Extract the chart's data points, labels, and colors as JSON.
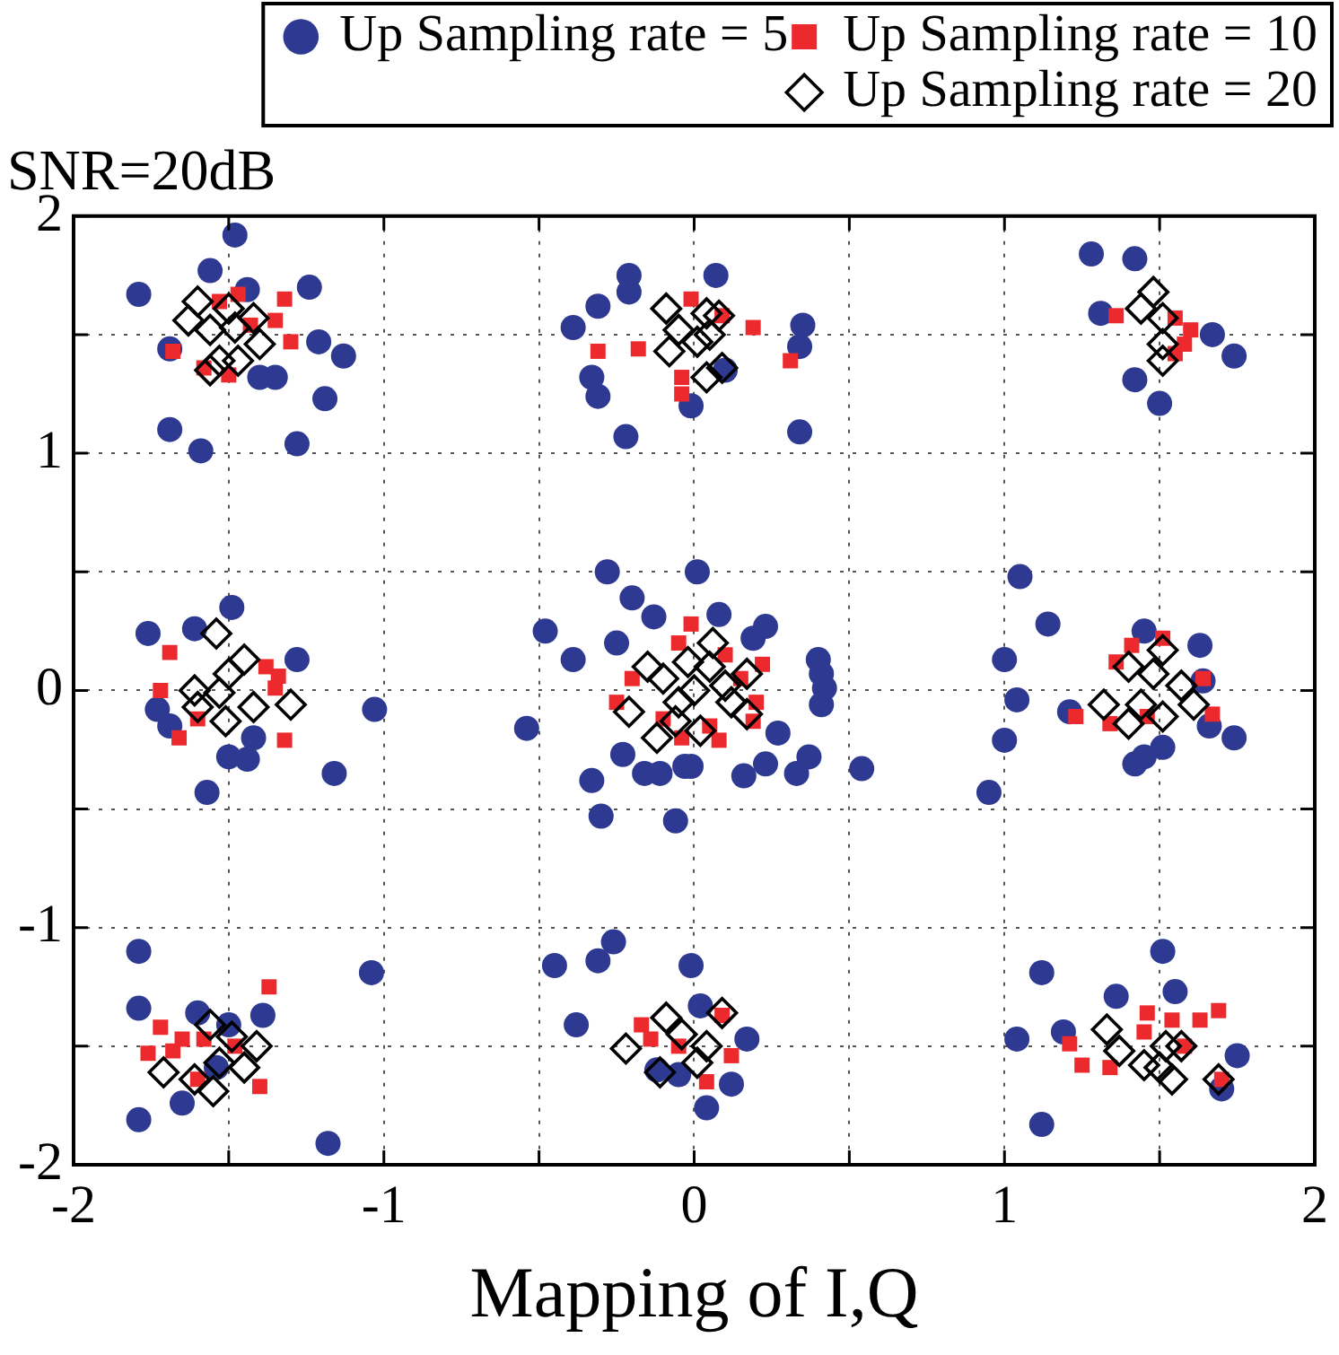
{
  "chart_data": {
    "type": "scatter",
    "title": "SNR=20dB",
    "xlabel": "Mapping of I,Q",
    "xlim": [
      -2,
      2
    ],
    "ylim": [
      -2,
      2
    ],
    "xticks": [
      -2,
      {
        "value": -1.5,
        "label": null
      },
      -1,
      {
        "value": -0.5,
        "label": null
      },
      0,
      {
        "value": 0.5,
        "label": null
      },
      1,
      {
        "value": 1.5,
        "label": null
      },
      2
    ],
    "yticks": [
      -2,
      {
        "value": -1.5,
        "label": null
      },
      -1,
      {
        "value": -0.5,
        "label": null
      },
      0,
      {
        "value": 0.5,
        "label": null
      },
      1,
      {
        "value": 1.5,
        "label": null
      },
      2
    ],
    "grid": true,
    "legend": "top right",
    "series": [
      {
        "name": "Up Sampling rate = 5",
        "color": "#2e3a92",
        "marker": "circle",
        "x": [
          -1.79,
          -1.56,
          -1.48,
          -1.44,
          -1.21,
          -1.13,
          -1.19,
          -1.28,
          -1.69,
          -1.59,
          -1.4,
          -1.35,
          -1.69,
          -1.24,
          -0.21,
          -0.21,
          -0.31,
          -0.39,
          -0.33,
          -0.31,
          -0.22,
          0.07,
          0.35,
          0.34,
          0.34,
          0.1,
          -0.01,
          1.28,
          1.42,
          1.31,
          1.67,
          1.74,
          1.42,
          1.5,
          -1.76,
          -1.61,
          -1.49,
          -1.28,
          -1.73,
          -1.42,
          -1.5,
          -1.44,
          -1.16,
          -1.57,
          -1.03,
          -1.69,
          -0.28,
          -0.2,
          -0.13,
          -0.48,
          -0.39,
          -0.25,
          0.01,
          0.08,
          0.19,
          0.23,
          0.4,
          0.41,
          0.42,
          0.41,
          0.27,
          0.23,
          0.16,
          0.33,
          0.37,
          0.54,
          -0.01,
          -0.54,
          -0.23,
          -0.33,
          -0.3,
          -0.16,
          -0.11,
          -0.06,
          -0.03,
          1.05,
          1.14,
          1.0,
          1.45,
          1.63,
          1.64,
          1.04,
          1.0,
          0.95,
          1.66,
          1.74,
          1.51,
          1.42,
          1.45,
          1.21,
          -1.79,
          -1.79,
          -1.6,
          -1.5,
          -1.39,
          -1.65,
          -1.79,
          -1.18,
          -1.04,
          -1.54,
          -0.45,
          -0.31,
          -0.26,
          -0.38,
          -0.01,
          0.02,
          0.17,
          0.12,
          0.04,
          -0.12,
          -0.05,
          1.51,
          1.12,
          1.36,
          1.55,
          1.04,
          1.19,
          1.75,
          1.7,
          1.12
        ],
        "values": [
          1.67,
          1.77,
          1.92,
          1.69,
          1.47,
          1.41,
          1.23,
          1.04,
          1.1,
          1.01,
          1.32,
          1.32,
          1.44,
          1.7,
          1.75,
          1.68,
          1.62,
          1.53,
          1.32,
          1.24,
          1.07,
          1.75,
          1.54,
          1.45,
          1.09,
          1.35,
          1.2,
          1.84,
          1.82,
          1.59,
          1.5,
          1.41,
          1.31,
          1.21,
          0.24,
          0.26,
          0.35,
          0.13,
          -0.08,
          -0.2,
          -0.28,
          -0.29,
          -0.35,
          -0.43,
          -0.08,
          -0.15,
          0.5,
          0.39,
          0.31,
          0.25,
          0.13,
          0.2,
          0.5,
          0.32,
          0.22,
          0.27,
          0.13,
          0.07,
          0.01,
          -0.06,
          -0.18,
          -0.31,
          -0.36,
          -0.35,
          -0.28,
          -0.33,
          -0.32,
          -0.16,
          -0.27,
          -0.38,
          -0.53,
          -0.35,
          -0.35,
          -0.55,
          -0.32,
          0.48,
          0.28,
          0.13,
          0.25,
          0.19,
          0.04,
          -0.04,
          -0.21,
          -0.43,
          -0.15,
          -0.2,
          -0.24,
          -0.31,
          -0.28,
          -0.09,
          -1.1,
          -1.34,
          -1.36,
          -1.41,
          -1.37,
          -1.74,
          -1.81,
          -1.91,
          -1.19,
          -1.59,
          -1.16,
          -1.14,
          -1.06,
          -1.41,
          -1.16,
          -1.33,
          -1.47,
          -1.66,
          -1.76,
          -1.6,
          -1.62,
          -1.1,
          -1.19,
          -1.29,
          -1.27,
          -1.47,
          -1.44,
          -1.54,
          -1.68,
          -1.83
        ]
      },
      {
        "name": "Up Sampling rate = 10",
        "color": "#ec2a2d",
        "marker": "square",
        "x": [
          -1.32,
          -1.35,
          -1.3,
          -1.68,
          -1.58,
          -1.5,
          -1.47,
          -1.53,
          -1.43,
          -0.31,
          -0.18,
          -0.04,
          -0.04,
          0.19,
          0.31,
          -0.01,
          0.09,
          1.36,
          1.55,
          1.6,
          1.58,
          1.55,
          -1.69,
          -1.38,
          -1.34,
          -1.72,
          -1.66,
          -1.6,
          -1.32,
          -1.35,
          -0.01,
          0.22,
          0.08,
          0.19,
          -0.04,
          -0.2,
          0.15,
          -0.1,
          0.1,
          -0.05,
          0.2,
          -0.25,
          0.05,
          1.36,
          1.41,
          1.51,
          1.64,
          1.23,
          1.67,
          1.34,
          1.46,
          -1.37,
          -1.72,
          -1.76,
          -1.65,
          -1.58,
          -1.4,
          -1.6,
          -1.48,
          -1.68,
          -0.17,
          -0.14,
          0.04,
          0.12,
          0.09,
          -0.05,
          1.21,
          1.25,
          1.34,
          1.46,
          1.54,
          1.63,
          1.69,
          1.58,
          1.7,
          1.45
        ],
        "values": [
          1.65,
          1.56,
          1.47,
          1.43,
          1.36,
          1.33,
          1.67,
          1.64,
          1.54,
          1.43,
          1.44,
          1.32,
          1.25,
          1.53,
          1.39,
          1.65,
          1.58,
          1.58,
          1.57,
          1.52,
          1.46,
          1.42,
          0.16,
          0.1,
          0.06,
          0.0,
          -0.2,
          -0.12,
          -0.21,
          0.01,
          0.28,
          0.11,
          -0.21,
          -0.13,
          -0.2,
          0.05,
          0.05,
          -0.12,
          0.15,
          0.2,
          -0.05,
          -0.05,
          -0.15,
          0.12,
          0.19,
          0.22,
          0.05,
          -0.11,
          -0.1,
          -0.14,
          -0.11,
          -1.25,
          -1.42,
          -1.53,
          -1.47,
          -1.47,
          -1.67,
          -1.64,
          -1.5,
          -1.52,
          -1.41,
          -1.47,
          -1.65,
          -1.54,
          -1.37,
          -1.5,
          -1.49,
          -1.58,
          -1.59,
          -1.36,
          -1.39,
          -1.39,
          -1.35,
          -1.5,
          -1.64,
          -1.44
        ]
      },
      {
        "name": "Up Sampling rate = 20",
        "color": "#000000",
        "marker": "diamond",
        "x": [
          -1.6,
          -1.5,
          -1.42,
          -1.63,
          -1.56,
          -1.48,
          -1.4,
          -1.53,
          -1.47,
          -1.56,
          -0.09,
          -0.08,
          0.04,
          0.08,
          0.05,
          0.04,
          0.09,
          -0.05,
          0.01,
          1.48,
          1.44,
          1.51,
          1.51,
          1.51,
          -1.54,
          -1.45,
          -1.5,
          -1.61,
          -1.6,
          -1.51,
          -1.42,
          -1.3,
          -1.53,
          -0.21,
          -0.12,
          -0.06,
          0.06,
          0.17,
          0.17,
          0.02,
          0.0,
          -0.1,
          0.1,
          -0.05,
          0.05,
          -0.15,
          0.12,
          -0.02,
          1.4,
          1.51,
          1.48,
          1.57,
          1.32,
          1.4,
          1.51,
          1.61,
          1.44,
          -1.71,
          -1.56,
          -1.45,
          -1.41,
          -1.61,
          -1.55,
          -1.49,
          -1.53,
          -0.22,
          -0.09,
          -0.11,
          0.09,
          0.04,
          0.01,
          -0.04,
          1.33,
          1.37,
          1.45,
          1.5,
          1.54,
          1.52,
          1.57,
          1.69
        ],
        "values": [
          1.64,
          1.61,
          1.57,
          1.56,
          1.52,
          1.53,
          1.46,
          1.39,
          1.39,
          1.35,
          1.61,
          1.43,
          1.59,
          1.58,
          1.5,
          1.32,
          1.36,
          1.52,
          1.47,
          1.68,
          1.61,
          1.57,
          1.46,
          1.39,
          0.24,
          0.13,
          0.07,
          0.0,
          -0.07,
          -0.13,
          -0.07,
          -0.06,
          -0.01,
          -0.09,
          -0.2,
          -0.13,
          0.2,
          0.07,
          -0.1,
          -0.17,
          0.0,
          0.05,
          0.02,
          -0.05,
          0.1,
          0.1,
          -0.05,
          0.12,
          0.1,
          0.17,
          0.07,
          0.02,
          -0.06,
          -0.14,
          -0.11,
          -0.06,
          -0.06,
          -1.61,
          -1.41,
          -1.59,
          -1.5,
          -1.64,
          -1.69,
          -1.46,
          -1.57,
          -1.51,
          -1.38,
          -1.61,
          -1.36,
          -1.5,
          -1.57,
          -1.45,
          -1.43,
          -1.52,
          -1.58,
          -1.59,
          -1.64,
          -1.5,
          -1.5,
          -1.64
        ]
      }
    ]
  }
}
